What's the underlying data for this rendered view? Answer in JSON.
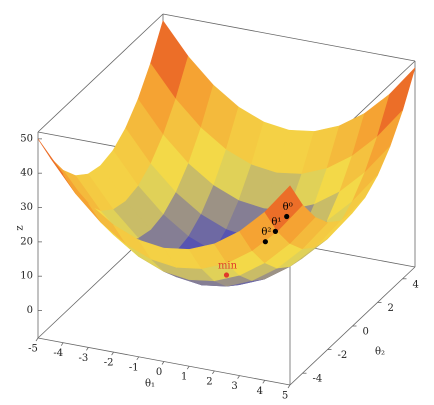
{
  "chart_data": {
    "type": "surface3d",
    "xlabel": "θ₁",
    "ylabel": "θ₂",
    "zlabel": "z",
    "xlim": [
      -5,
      5
    ],
    "ylim": [
      -5,
      5
    ],
    "zlim": [
      -8,
      52
    ],
    "xticks": [
      -5,
      -4,
      -3,
      -2,
      -1,
      0,
      1,
      2,
      3,
      4,
      5
    ],
    "yticks": [
      -4,
      -2,
      0,
      2,
      4
    ],
    "zticks": [
      0,
      10,
      20,
      30,
      40,
      50
    ],
    "x": [
      -5,
      -4,
      -3,
      -2,
      -1,
      0,
      1,
      2,
      3,
      4,
      5
    ],
    "y": [
      -5,
      -4,
      -3,
      -2,
      -1,
      0,
      1,
      2,
      3,
      4,
      5
    ],
    "z": [
      [
        50,
        41,
        34,
        29,
        26,
        25,
        26,
        29,
        34,
        41,
        50
      ],
      [
        41,
        32,
        25,
        20,
        17,
        16,
        17,
        20,
        25,
        32,
        41
      ],
      [
        34,
        25,
        18,
        13,
        10,
        9,
        10,
        13,
        18,
        25,
        34
      ],
      [
        29,
        20,
        13,
        8,
        5,
        4,
        5,
        8,
        13,
        20,
        29
      ],
      [
        26,
        17,
        10,
        5,
        2,
        1,
        2,
        5,
        10,
        17,
        26
      ],
      [
        25,
        16,
        9,
        4,
        1,
        0,
        1,
        4,
        9,
        16,
        25
      ],
      [
        26,
        17,
        10,
        5,
        2,
        1,
        2,
        5,
        10,
        17,
        26
      ],
      [
        29,
        20,
        13,
        8,
        5,
        4,
        5,
        8,
        13,
        20,
        29
      ],
      [
        34,
        25,
        18,
        13,
        10,
        9,
        10,
        13,
        18,
        25,
        34
      ],
      [
        41,
        32,
        25,
        20,
        17,
        16,
        17,
        20,
        25,
        32,
        41
      ],
      [
        50,
        41,
        34,
        29,
        26,
        25,
        26,
        29,
        34,
        41,
        50
      ]
    ],
    "colormap": [
      "#3535c8",
      "#f3e24c",
      "#f5a232",
      "#e2301c"
    ],
    "points": [
      {
        "label": "θ⁰",
        "x": 1,
        "y": 2.8,
        "z": 8.8,
        "color": "#000000"
      },
      {
        "label": "θ¹",
        "x": 0.8,
        "y": 2.3,
        "z": 5.9,
        "color": "#000000"
      },
      {
        "label": "θ²",
        "x": 0.6,
        "y": 1.9,
        "z": 4.0,
        "color": "#000000"
      },
      {
        "label": "min",
        "x": 0,
        "y": 0,
        "z": 0,
        "color": "#e03a2a"
      }
    ]
  }
}
